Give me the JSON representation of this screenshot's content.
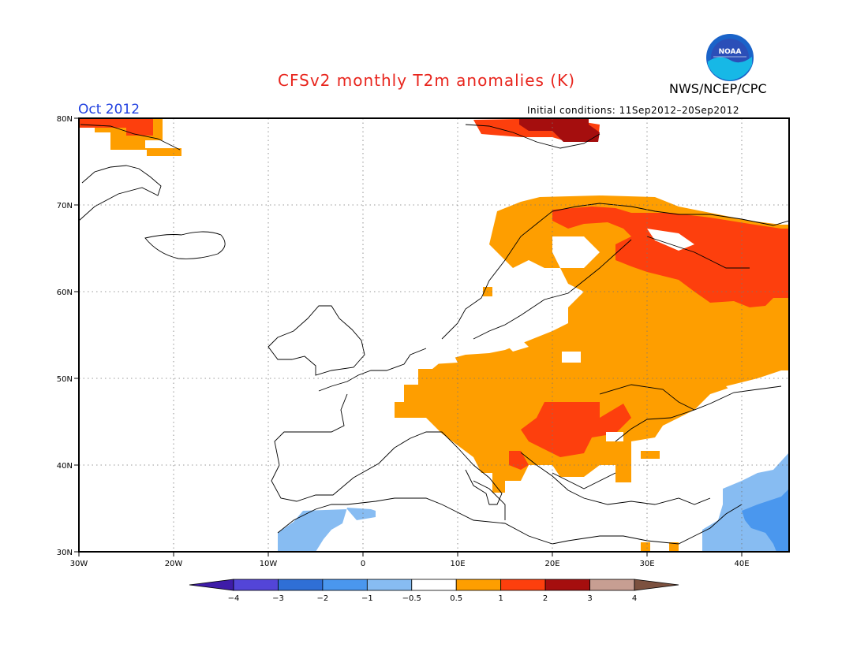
{
  "header": {
    "title": "CFSv2 monthly T2m anomalies (K)",
    "agency": "NWS/NCEP/CPC",
    "month": "Oct 2012",
    "initial_conditions": "Initial conditions: 11Sep2012–20Sep2012",
    "logo_text": "NOAA"
  },
  "map": {
    "lon_range": [
      -30,
      45
    ],
    "lat_range": [
      30,
      80
    ],
    "lat_labels": [
      "80N",
      "70N",
      "60N",
      "50N",
      "40N",
      "30N"
    ],
    "lon_labels": [
      "30W",
      "20W",
      "10W",
      "0",
      "10E",
      "20E",
      "30E",
      "40E"
    ],
    "grid": "dotted"
  },
  "colorbar": {
    "labels": [
      "−4",
      "−3",
      "−2",
      "−1",
      "−0.5",
      "0.5",
      "1",
      "2",
      "3",
      "4"
    ],
    "colors": [
      "#3e1ca8",
      "#5345d8",
      "#2f6fd6",
      "#4a97ee",
      "#87bcf2",
      "#ffffff",
      "#fe9e00",
      "#fd3f0d",
      "#a50e0e",
      "#c79e92",
      "#7c513f"
    ]
  },
  "colors": {
    "title": "#e8251d",
    "month": "#2040e0",
    "warm_05_1": "#fe9e00",
    "warm_1_2": "#fd3f0d",
    "warm_2_3": "#a50e0e",
    "cool_05_1": "#87bcf2",
    "cool_1_2": "#4a97ee"
  }
}
